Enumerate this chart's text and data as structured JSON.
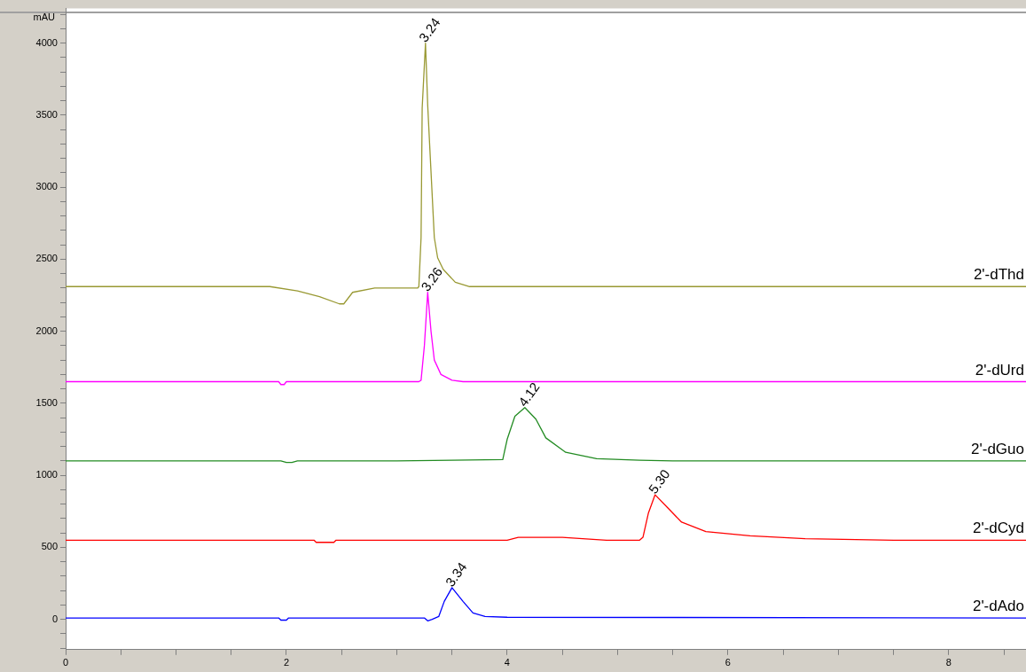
{
  "chart_data": {
    "type": "line",
    "ylabel": "mAU",
    "xlim": [
      0,
      8.7
    ],
    "ylim": [
      -210,
      4240
    ],
    "xticks": [
      0,
      {
        "value": 0.5,
        "label": null
      },
      {
        "value": 1,
        "label": null
      },
      {
        "value": 1.5,
        "label": null
      },
      2,
      {
        "value": 2.5,
        "label": null
      },
      {
        "value": 3,
        "label": null
      },
      {
        "value": 3.5,
        "label": null
      },
      4,
      {
        "value": 4.5,
        "label": null
      },
      {
        "value": 5,
        "label": null
      },
      {
        "value": 5.5,
        "label": null
      },
      6,
      {
        "value": 6.5,
        "label": null
      },
      {
        "value": 7,
        "label": null
      },
      {
        "value": 7.5,
        "label": null
      },
      8,
      {
        "value": 8.5,
        "label": null
      }
    ],
    "yticks": [
      {
        "value": -200,
        "label": null
      },
      {
        "value": -100,
        "label": null
      },
      0,
      {
        "value": 100,
        "label": null
      },
      {
        "value": 200,
        "label": null
      },
      {
        "value": 300,
        "label": null
      },
      {
        "value": 400,
        "label": null
      },
      500,
      {
        "value": 600,
        "label": null
      },
      {
        "value": 700,
        "label": null
      },
      {
        "value": 800,
        "label": null
      },
      {
        "value": 900,
        "label": null
      },
      1000,
      {
        "value": 1100,
        "label": null
      },
      {
        "value": 1200,
        "label": null
      },
      {
        "value": 1300,
        "label": null
      },
      {
        "value": 1400,
        "label": null
      },
      1500,
      {
        "value": 1600,
        "label": null
      },
      {
        "value": 1700,
        "label": null
      },
      {
        "value": 1800,
        "label": null
      },
      {
        "value": 1900,
        "label": null
      },
      2000,
      {
        "value": 2100,
        "label": null
      },
      {
        "value": 2200,
        "label": null
      },
      {
        "value": 2300,
        "label": null
      },
      {
        "value": 2400,
        "label": null
      },
      2500,
      {
        "value": 2600,
        "label": null
      },
      {
        "value": 2700,
        "label": null
      },
      {
        "value": 2800,
        "label": null
      },
      {
        "value": 2900,
        "label": null
      },
      3000,
      {
        "value": 3100,
        "label": null
      },
      {
        "value": 3200,
        "label": null
      },
      {
        "value": 3300,
        "label": null
      },
      {
        "value": 3400,
        "label": null
      },
      3500,
      {
        "value": 3600,
        "label": null
      },
      {
        "value": 3700,
        "label": null
      },
      {
        "value": 3800,
        "label": null
      },
      {
        "value": 3900,
        "label": null
      },
      4000,
      {
        "value": 4100,
        "label": null
      },
      {
        "value": 4200,
        "label": null
      }
    ],
    "legend": false,
    "marker": "none",
    "line_style": "solid",
    "series": [
      {
        "name": "2'-dThd",
        "color": "#999933",
        "x": [
          0,
          1.85,
          2.1,
          2.3,
          2.48,
          2.52,
          2.6,
          2.8,
          3.19,
          3.2,
          3.22,
          3.23,
          3.26,
          3.28,
          3.3,
          3.34,
          3.37,
          3.42,
          3.53,
          3.66,
          8.7
        ],
        "values": [
          2310,
          2310,
          2280,
          2240,
          2190,
          2190,
          2270,
          2300,
          2300,
          2310,
          2650,
          3550,
          4000,
          3570,
          3260,
          2650,
          2510,
          2430,
          2340,
          2310,
          2310
        ]
      },
      {
        "name": "2'-dUrd",
        "color": "#ff00ff",
        "x": [
          0,
          1.93,
          1.95,
          1.98,
          2.0,
          3.2,
          3.22,
          3.25,
          3.28,
          3.31,
          3.34,
          3.4,
          3.5,
          3.6,
          8.7
        ],
        "values": [
          1650,
          1650,
          1630,
          1630,
          1650,
          1650,
          1660,
          1900,
          2270,
          2000,
          1800,
          1700,
          1660,
          1650,
          1650
        ]
      },
      {
        "name": "2'-dGuo",
        "color": "#228b22",
        "x": [
          0,
          1.95,
          2.0,
          2.05,
          2.1,
          3.0,
          3.5,
          3.96,
          4.0,
          4.07,
          4.16,
          4.26,
          4.35,
          4.53,
          4.81,
          5.2,
          5.5,
          8.7
        ],
        "values": [
          1100,
          1100,
          1090,
          1090,
          1100,
          1100,
          1105,
          1110,
          1250,
          1410,
          1470,
          1390,
          1260,
          1160,
          1115,
          1105,
          1100,
          1100
        ]
      },
      {
        "name": "2'-dCyd",
        "color": "#ff0000",
        "x": [
          0,
          2.25,
          2.27,
          2.43,
          2.45,
          4.0,
          4.1,
          4.5,
          4.9,
          5.2,
          5.23,
          5.28,
          5.34,
          5.46,
          5.58,
          5.8,
          6.2,
          6.7,
          7.5,
          8.7
        ],
        "values": [
          550,
          550,
          535,
          535,
          550,
          550,
          570,
          570,
          550,
          550,
          570,
          740,
          865,
          770,
          675,
          610,
          580,
          560,
          550,
          550
        ]
      },
      {
        "name": "2'-dAdo",
        "color": "#0000ff",
        "x": [
          0,
          1.93,
          1.95,
          2.0,
          2.02,
          3.25,
          3.28,
          3.32,
          3.38,
          3.43,
          3.5,
          3.6,
          3.69,
          3.8,
          4.0,
          8.7
        ],
        "values": [
          10,
          10,
          -5,
          -5,
          10,
          10,
          -10,
          0,
          20,
          125,
          220,
          125,
          45,
          20,
          15,
          10
        ]
      }
    ],
    "annotations": [
      {
        "text": "3.24",
        "x": 3.26,
        "y": 4000
      },
      {
        "text": "3.26",
        "x": 3.28,
        "y": 2270
      },
      {
        "text": "4.12",
        "x": 4.16,
        "y": 1470
      },
      {
        "text": "5.30",
        "x": 5.34,
        "y": 865
      },
      {
        "text": "3.34",
        "x": 3.5,
        "y": 220
      }
    ]
  }
}
